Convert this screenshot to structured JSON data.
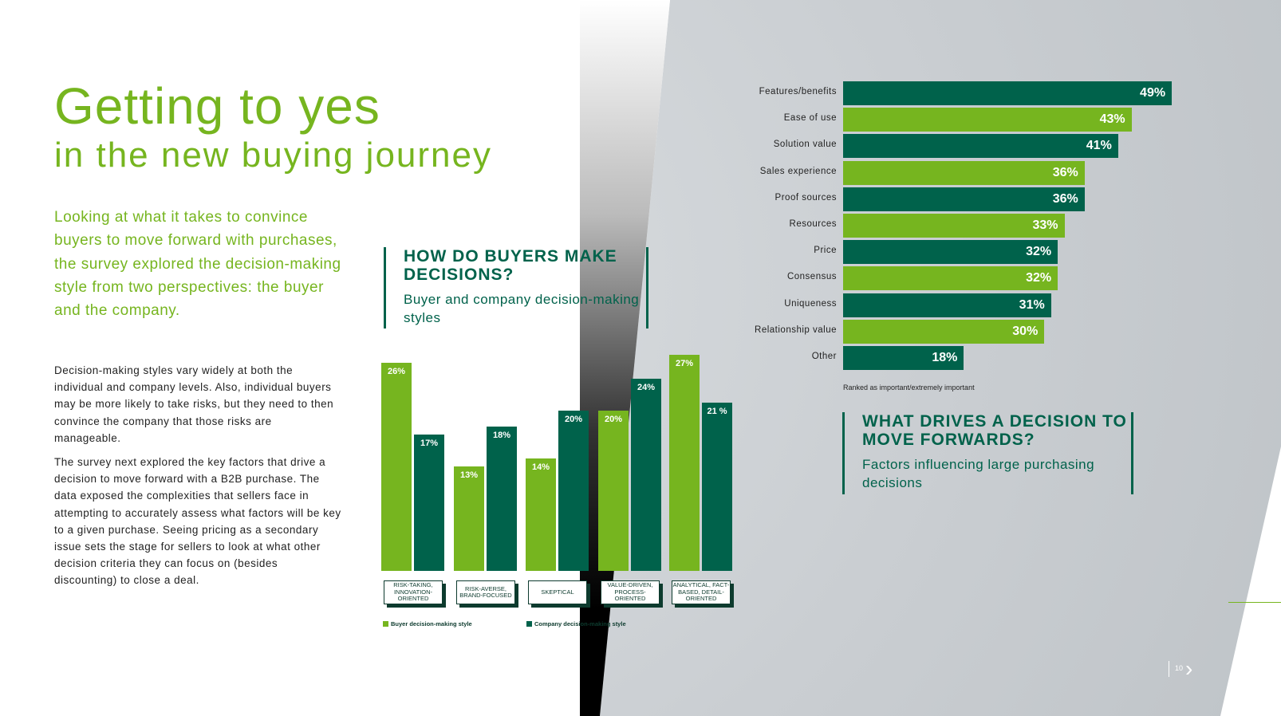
{
  "title": "Getting to yes",
  "subtitle": "in the new buying journey",
  "lead": "Looking at what it takes to convince buyers to move forward with purchases, the survey explored the decision-making style from two perspectives: the buyer and the company.",
  "body": [
    "Decision-making styles vary widely at both the individual and company levels. Also, individual buyers may be more likely to take risks, but they need to then convince the company that those risks are manageable.",
    "The survey next explored the key factors that drive a decision to move forward with a B2B purchase. The data exposed the complexities that sellers face in attempting to accurately assess what factors will be key to a given purchase. Seeing pricing as a secondary issue sets the stage for sellers to look at what other decision criteria they can focus on (besides discounting) to close a deal."
  ],
  "section1": {
    "heading": "HOW DO BUYERS MAKE DECISIONS?",
    "sub": "Buyer and company decision-making styles"
  },
  "section2": {
    "heading": "WHAT DRIVES A DECISION TO MOVE FORWARDS?",
    "sub": "Factors influencing large purchasing decisions"
  },
  "colors": {
    "light_green": "#76b51f",
    "dark_green": "#00624b"
  },
  "page_number": "10",
  "chart_data": [
    {
      "type": "bar",
      "orientation": "vertical",
      "categories": [
        "RISK-TAKING, INNOVATION-ORIENTED",
        "RISK-AVERSE, BRAND-FOCUSED",
        "SKEPTICAL",
        "VALUE-DRIVEN, PROCESS-ORIENTED",
        "ANALYTICAL, FACT-BASED, DETAIL-ORIENTED"
      ],
      "series": [
        {
          "name": "Buyer decision-making style",
          "values": [
            26,
            13,
            14,
            20,
            27
          ],
          "labels": [
            "26%",
            "13%",
            "14%",
            "20%",
            "27%"
          ],
          "color": "#76b51f"
        },
        {
          "name": "Company decision-making style",
          "values": [
            17,
            18,
            20,
            24,
            21
          ],
          "labels": [
            "17%",
            "18%",
            "20%",
            "24%",
            "21 %"
          ],
          "color": "#00624b"
        }
      ],
      "legend": "bottom",
      "ylim": [
        0,
        27
      ]
    },
    {
      "type": "bar",
      "orientation": "horizontal",
      "categories": [
        "Features/benefits",
        "Ease of use",
        "Solution value",
        "Sales experience",
        "Proof sources",
        "Resources",
        "Price",
        "Consensus",
        "Uniqueness",
        "Relationship value",
        "Other"
      ],
      "values": [
        49,
        43,
        41,
        36,
        36,
        33,
        32,
        32,
        31,
        30,
        18
      ],
      "labels": [
        "49%",
        "43%",
        "41%",
        "36%",
        "36%",
        "33%",
        "32%",
        "32%",
        "31%",
        "30%",
        "18%"
      ],
      "note": "Ranked as important/extremely important"
    }
  ]
}
